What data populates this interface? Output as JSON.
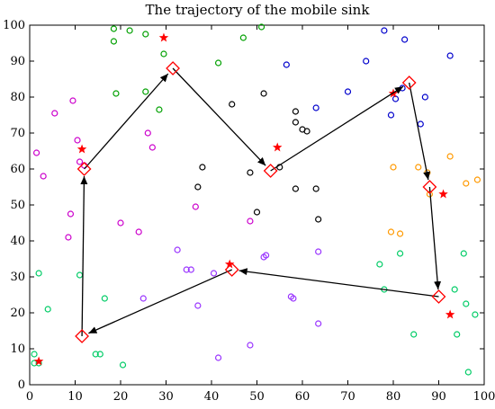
{
  "chart_data": {
    "type": "scatter",
    "title": "The trajectory of the mobile sink",
    "xlabel": "",
    "ylabel": "",
    "xlim": [
      0,
      100
    ],
    "ylim": [
      0,
      100
    ],
    "xticks": [
      0,
      10,
      20,
      30,
      40,
      50,
      60,
      70,
      80,
      90,
      100
    ],
    "yticks": [
      0,
      10,
      20,
      30,
      40,
      50,
      60,
      70,
      80,
      90,
      100
    ],
    "grid": false,
    "legend": "none",
    "clusters": [
      {
        "color": "#00a000",
        "marker": "circle",
        "points": [
          [
            18.5,
            99
          ],
          [
            22,
            98.5
          ],
          [
            25.5,
            97.5
          ],
          [
            29.5,
            92
          ],
          [
            18.5,
            95.5
          ],
          [
            25.5,
            81.5
          ],
          [
            28.5,
            76.5
          ],
          [
            19,
            81
          ],
          [
            41.5,
            89.5
          ],
          [
            47,
            96.5
          ],
          [
            51,
            99.5
          ]
        ]
      },
      {
        "color": "#0000cc",
        "marker": "circle",
        "points": [
          [
            78,
            98.5
          ],
          [
            82.5,
            96
          ],
          [
            92.5,
            91.5
          ],
          [
            56.5,
            89
          ],
          [
            74,
            90
          ],
          [
            70,
            81.5
          ],
          [
            82,
            82.5
          ],
          [
            80.5,
            79.5
          ],
          [
            87,
            80
          ],
          [
            86,
            72.5
          ],
          [
            63,
            77
          ],
          [
            79.5,
            75
          ]
        ]
      },
      {
        "color": "#000000",
        "marker": "circle",
        "points": [
          [
            44.5,
            78
          ],
          [
            51.5,
            81
          ],
          [
            58.5,
            76
          ],
          [
            58.5,
            73
          ],
          [
            60,
            71
          ],
          [
            61,
            70.5
          ],
          [
            38,
            60.5
          ],
          [
            48.5,
            59
          ],
          [
            55,
            60.5
          ],
          [
            37,
            55
          ],
          [
            58.5,
            54.5
          ],
          [
            63,
            54.5
          ],
          [
            50,
            48
          ],
          [
            63.5,
            46
          ]
        ]
      },
      {
        "color": "#cc00cc",
        "marker": "circle",
        "points": [
          [
            1.5,
            64.5
          ],
          [
            5.5,
            75.5
          ],
          [
            9.5,
            79
          ],
          [
            3,
            58
          ],
          [
            10.5,
            68
          ],
          [
            11,
            62
          ],
          [
            12,
            61
          ],
          [
            26,
            70
          ],
          [
            27,
            66
          ],
          [
            9,
            47.5
          ],
          [
            8.5,
            41
          ],
          [
            20,
            45
          ],
          [
            24,
            42.5
          ],
          [
            36.5,
            49.5
          ],
          [
            48.5,
            45.5
          ]
        ]
      },
      {
        "color": "#9933ff",
        "marker": "circle",
        "points": [
          [
            32.5,
            37.5
          ],
          [
            34.5,
            32
          ],
          [
            35.5,
            32
          ],
          [
            40.5,
            31
          ],
          [
            51.5,
            35.5
          ],
          [
            52,
            36
          ],
          [
            63.5,
            37
          ],
          [
            25,
            24
          ],
          [
            37,
            22
          ],
          [
            57.5,
            24.5
          ],
          [
            58,
            24
          ],
          [
            63.5,
            17
          ],
          [
            41.5,
            7.5
          ],
          [
            48.5,
            11
          ]
        ]
      },
      {
        "color": "#00cc66",
        "marker": "circle",
        "points": [
          [
            2,
            31
          ],
          [
            4,
            21
          ],
          [
            11,
            30.5
          ],
          [
            16.5,
            24
          ],
          [
            1,
            8.5
          ],
          [
            1,
            6
          ],
          [
            2,
            6
          ],
          [
            14.5,
            8.5
          ],
          [
            15.5,
            8.5
          ],
          [
            20.5,
            5.5
          ],
          [
            77,
            33.5
          ],
          [
            78,
            26.5
          ],
          [
            81.5,
            36.5
          ],
          [
            84.5,
            14
          ],
          [
            93.5,
            26.5
          ],
          [
            95.5,
            36.5
          ],
          [
            96,
            22.5
          ],
          [
            98,
            19.5
          ],
          [
            94,
            14
          ],
          [
            96.5,
            3.5
          ]
        ]
      },
      {
        "color": "#ff9900",
        "marker": "circle",
        "points": [
          [
            80,
            60.5
          ],
          [
            85.5,
            60.5
          ],
          [
            87.5,
            59
          ],
          [
            79.5,
            42.5
          ],
          [
            81.5,
            42
          ],
          [
            88,
            53
          ],
          [
            92.5,
            63.5
          ],
          [
            96,
            56
          ],
          [
            98.5,
            57
          ]
        ]
      }
    ],
    "stars": {
      "color": "#ff0000",
      "points": [
        [
          2,
          6.5
        ],
        [
          11.5,
          65.5
        ],
        [
          29.5,
          96.5
        ],
        [
          54.5,
          66
        ],
        [
          44,
          33.5
        ],
        [
          80,
          81
        ],
        [
          91,
          53
        ],
        [
          92.5,
          19.5
        ]
      ]
    },
    "trajectory": {
      "color": "#000000",
      "waypoint_color": "#ff0000",
      "points": [
        [
          31.5,
          88
        ],
        [
          53,
          59.5
        ],
        [
          83.5,
          84
        ],
        [
          88,
          55
        ],
        [
          90,
          24.5
        ],
        [
          44.5,
          32
        ],
        [
          11.5,
          13.5
        ],
        [
          12,
          60
        ],
        [
          31.5,
          88
        ]
      ]
    }
  }
}
